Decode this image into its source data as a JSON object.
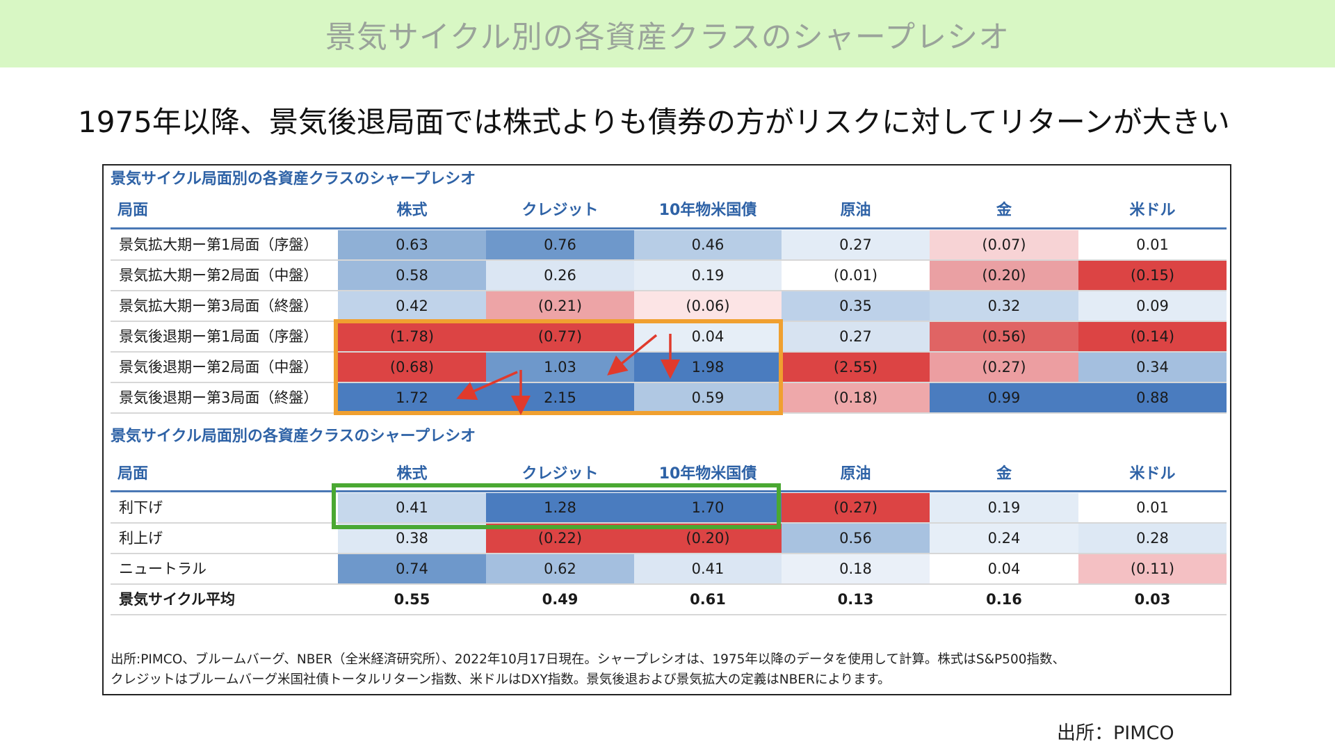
{
  "banner": {
    "title": "景気サイクル別の各資産クラスのシャープレシオ"
  },
  "headline": "1975年以降、景気後退局面では株式よりも債券の方がリスクに対してリターンが大きい",
  "source": "出所：PIMCO",
  "colors": {
    "header_text": "#2e62a6",
    "header_rule": "#4a78b5",
    "highlight_orange": "#f0a030",
    "highlight_green": "#4aa832",
    "arrow_red": "#e03a2c"
  },
  "chart_data": [
    {
      "type": "table",
      "title": "景気サイクル局面別の各資産クラスのシャープレシオ",
      "columns": [
        "局面",
        "株式",
        "クレジット",
        "10年物米国債",
        "原油",
        "金",
        "米ドル"
      ],
      "rows": [
        {
          "label": "景気拡大期ー第1局面（序盤）",
          "values": [
            "0.63",
            "0.76",
            "0.46",
            "0.27",
            "(0.07)",
            "0.01"
          ],
          "colors": [
            "#8fb0d6",
            "#6e98cb",
            "#b7cde6",
            "#e3ecf6",
            "#f7d3d5",
            "#ffffff"
          ]
        },
        {
          "label": "景気拡大期ー第2局面（中盤）",
          "values": [
            "0.58",
            "0.26",
            "0.19",
            "(0.01)",
            "(0.20)",
            "(0.15)"
          ],
          "colors": [
            "#9dbadc",
            "#dbe6f3",
            "#e5edf6",
            "#ffffff",
            "#eaa0a3",
            "#dc4444"
          ]
        },
        {
          "label": "景気拡大期ー第3局面（終盤）",
          "values": [
            "0.42",
            "(0.21)",
            "(0.06)",
            "0.35",
            "0.32",
            "0.09"
          ],
          "colors": [
            "#c0d3ea",
            "#eda4a6",
            "#fce4e5",
            "#bdd1e9",
            "#c6d8ec",
            "#e3ecf6"
          ]
        },
        {
          "label": "景気後退期ー第1局面（序盤）",
          "values": [
            "(1.78)",
            "(0.77)",
            "0.04",
            "0.27",
            "(0.56)",
            "(0.14)"
          ],
          "colors": [
            "#dc4444",
            "#dc4444",
            "#e6eef7",
            "#d7e3f1",
            "#e06464",
            "#dc4444"
          ]
        },
        {
          "label": "景気後退期ー第2局面（中盤）",
          "values": [
            "(0.68)",
            "1.03",
            "1.98",
            "(2.55)",
            "(0.27)",
            "0.34"
          ],
          "colors": [
            "#dc4444",
            "#6e98cb",
            "#4a7cbf",
            "#dc4444",
            "#ec9ea1",
            "#a4bfdf"
          ]
        },
        {
          "label": "景気後退期ー第3局面（終盤）",
          "values": [
            "1.72",
            "2.15",
            "0.59",
            "(0.18)",
            "0.99",
            "0.88"
          ],
          "colors": [
            "#4a7cbf",
            "#4a7cbf",
            "#b0c8e3",
            "#eea8aa",
            "#4a7cbf",
            "#4a7cbf"
          ]
        }
      ]
    },
    {
      "type": "table",
      "title": "景気サイクル局面別の各資産クラスのシャープレシオ",
      "columns": [
        "局面",
        "株式",
        "クレジット",
        "10年物米国債",
        "原油",
        "金",
        "米ドル"
      ],
      "rows": [
        {
          "label": "利下げ",
          "values": [
            "0.41",
            "1.28",
            "1.70",
            "(0.27)",
            "0.19",
            "0.01"
          ],
          "colors": [
            "#c6d8ec",
            "#4a7cbf",
            "#4a7cbf",
            "#dc4444",
            "#e3ecf6",
            "#ffffff"
          ]
        },
        {
          "label": "利上げ",
          "values": [
            "0.38",
            "(0.22)",
            "(0.20)",
            "0.56",
            "0.24",
            "0.28"
          ],
          "colors": [
            "#dde8f4",
            "#dc4444",
            "#dc4444",
            "#a8c2e0",
            "#e6eef7",
            "#dde8f4"
          ]
        },
        {
          "label": "ニュートラル",
          "values": [
            "0.74",
            "0.62",
            "0.41",
            "0.18",
            "0.04",
            "(0.11)"
          ],
          "colors": [
            "#6e98cb",
            "#a4bfdf",
            "#dbe6f3",
            "#eaf0f8",
            "#ffffff",
            "#f4c0c3"
          ]
        },
        {
          "label": "景気サイクル平均",
          "values": [
            "0.55",
            "0.49",
            "0.61",
            "0.13",
            "0.16",
            "0.03"
          ],
          "colors": [
            "#ffffff",
            "#ffffff",
            "#ffffff",
            "#ffffff",
            "#ffffff",
            "#ffffff"
          ],
          "bold": true
        }
      ]
    }
  ],
  "footnote": [
    "出所:PIMCO、ブルームバーグ、NBER（全米経済研究所）、2022年10月17日現在。シャープレシオは、1975年以降のデータを使用して計算。株式はS&P500指数、",
    "クレジットはブルームバーグ米国社債トータルリターン指数、米ドルはDXY指数。景気後退および景気拡大の定義はNBERによります。"
  ]
}
